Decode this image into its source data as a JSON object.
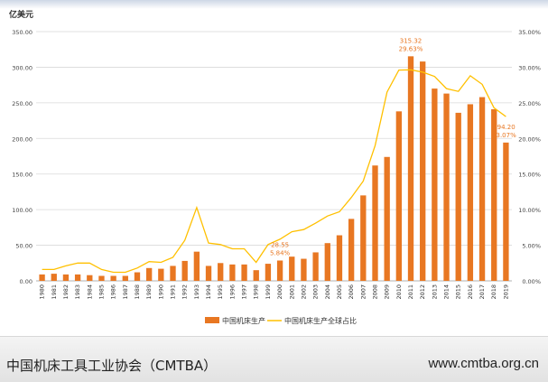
{
  "chart_data": {
    "type": "bar",
    "title": "",
    "ylabel": "亿美元",
    "ylim": [
      0,
      350
    ],
    "y2lim": [
      0,
      35
    ],
    "y_ticks": [
      "0.00",
      "50.00",
      "100.00",
      "150.00",
      "200.00",
      "250.00",
      "300.00",
      "350.00"
    ],
    "y2_ticks": [
      "0.00%",
      "5.00%",
      "10.00%",
      "15.00%",
      "20.00%",
      "25.00%",
      "30.00%",
      "35.00%"
    ],
    "grid": true,
    "legend_position": "bottom",
    "categories": [
      "1980",
      "1981",
      "1982",
      "1983",
      "1984",
      "1985",
      "1986",
      "1987",
      "1988",
      "1989",
      "1990",
      "1991",
      "1992",
      "1993",
      "1994",
      "1995",
      "1996",
      "1997",
      "1998",
      "1999",
      "2000",
      "2001",
      "2002",
      "2003",
      "2004",
      "2005",
      "2006",
      "2007",
      "2008",
      "2009",
      "2010",
      "2011",
      "2012",
      "2013",
      "2014",
      "2015",
      "2016",
      "2017",
      "2018",
      "2019"
    ],
    "series": [
      {
        "name": "中国机床生产",
        "kind": "bar",
        "axis": "left",
        "color": "#e87722",
        "values": [
          9,
          10,
          9,
          9,
          8,
          7,
          7,
          7,
          12,
          18,
          17,
          21,
          28,
          41,
          21,
          25,
          23,
          23,
          15,
          24,
          28.55,
          34,
          31,
          40,
          53,
          64,
          87,
          120,
          162,
          174,
          238,
          315.32,
          308,
          270,
          263,
          236,
          248,
          258,
          241,
          194.2
        ]
      },
      {
        "name": "中国机床生产全球占比",
        "kind": "line",
        "axis": "right",
        "color": "#ffc000",
        "values": [
          1.6,
          1.6,
          2.1,
          2.5,
          2.5,
          1.6,
          1.2,
          1.2,
          1.8,
          2.7,
          2.6,
          3.3,
          5.7,
          10.3,
          5.3,
          5.1,
          4.5,
          4.5,
          2.6,
          5.1,
          5.84,
          6.9,
          7.2,
          8.1,
          9.1,
          9.7,
          11.7,
          14.0,
          19.0,
          26.5,
          29.6,
          29.63,
          29.3,
          28.7,
          27.0,
          26.6,
          28.8,
          27.6,
          24.3,
          23.07
        ]
      }
    ],
    "annotations": [
      {
        "category": "2000",
        "bar_label": "28.55",
        "line_label": "5.84%"
      },
      {
        "category": "2011",
        "bar_label": "315.32",
        "line_label": "29.63%"
      },
      {
        "category": "2019",
        "bar_label": "194.20",
        "line_label": "23.07%"
      }
    ]
  },
  "footer": {
    "left": "中国机床工具工业协会（CMTBA）",
    "right": "www.cmtba.org.cn"
  }
}
